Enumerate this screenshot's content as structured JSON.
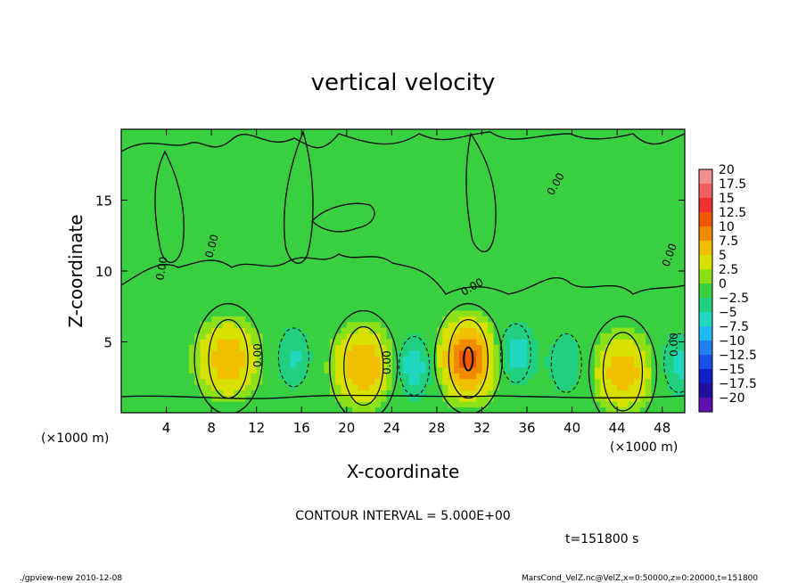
{
  "chart_data": {
    "type": "heatmap",
    "title": "vertical velocity",
    "xlabel": "X-coordinate",
    "ylabel": "Z-coordinate",
    "x_unit_left": "(×1000 m)",
    "x_unit_right": "(×1000 m)",
    "xlim": [
      0,
      50
    ],
    "ylim": [
      0,
      20
    ],
    "x_ticks": [
      4,
      8,
      12,
      16,
      20,
      24,
      28,
      32,
      36,
      40,
      44,
      48
    ],
    "x_tick_labels": [
      "4",
      "8",
      "12",
      "16",
      "20",
      "24",
      "28",
      "32",
      "36",
      "40",
      "44",
      "48"
    ],
    "y_ticks": [
      5,
      10,
      15
    ],
    "y_tick_labels": [
      "5",
      "10",
      "15"
    ],
    "colorbar": {
      "levels": [
        20,
        17.5,
        15,
        12.5,
        10,
        7.5,
        5,
        2.5,
        0,
        -2.5,
        -5,
        -7.5,
        -10,
        -12.5,
        -15,
        -17.5,
        -20
      ],
      "labels": [
        "20",
        "17.5",
        "15",
        "12.5",
        "10",
        "7.5",
        "5",
        "2.5",
        "0",
        "−2.5",
        "−5",
        "−7.5",
        "−10",
        "−12.5",
        "−15",
        "−17.5",
        "−20"
      ],
      "colors": [
        "#f09090",
        "#f06060",
        "#f03030",
        "#f05800",
        "#f08a00",
        "#f0c000",
        "#d8e000",
        "#8ce018",
        "#38d040",
        "#20d080",
        "#20d8c0",
        "#20b8f0",
        "#2080f0",
        "#1850e8",
        "#1020c8",
        "#2010a0",
        "#6010b0"
      ]
    },
    "features": [
      {
        "kind": "updraft",
        "x": 9.5,
        "z": 3.8,
        "peak": 7
      },
      {
        "kind": "updraft",
        "x": 21.5,
        "z": 3.3,
        "peak": 7.5
      },
      {
        "kind": "updraft",
        "x": 30.8,
        "z": 3.8,
        "peak": 11
      },
      {
        "kind": "updraft",
        "x": 44.5,
        "z": 2.9,
        "peak": 6.5
      },
      {
        "kind": "downdraft",
        "x": 15.3,
        "z": 3.9,
        "peak": -5.5
      },
      {
        "kind": "downdraft",
        "x": 26,
        "z": 3.3,
        "peak": -7.5
      },
      {
        "kind": "downdraft",
        "x": 35,
        "z": 4.2,
        "peak": -7
      },
      {
        "kind": "downdraft",
        "x": 39.5,
        "z": 3.5,
        "peak": -5
      },
      {
        "kind": "downdraft",
        "x": 49.5,
        "z": 3.5,
        "peak": -6
      }
    ],
    "contour_interval_text": "CONTOUR INTERVAL = 5.000E+00",
    "time_text": "t=151800 s",
    "contour_labels": [
      "0.00",
      "0.00",
      "0.00",
      "0.00",
      "0.00",
      "0.00",
      "0.00",
      "0.00"
    ]
  },
  "footer": {
    "left": "./gpview-new   2010-12-08",
    "right": "MarsCond_VelZ.nc@VelZ,x=0:50000,z=0:20000,t=151800"
  }
}
